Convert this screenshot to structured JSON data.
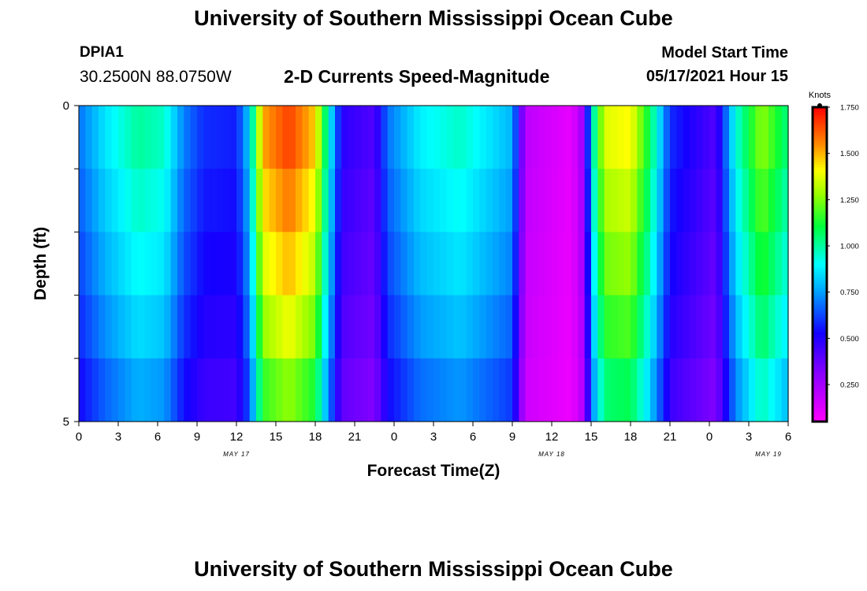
{
  "header": {
    "title": "University of Southern Mississippi Ocean Cube",
    "station": "DPIA1",
    "coordinates": "30.2500N  88.0750W",
    "subtitle": "2-D Currents Speed-Magnitude",
    "model_start_label": "Model Start Time",
    "model_start_value": "05/17/2021 Hour 15"
  },
  "footer": {
    "title": "University of Southern Mississippi Ocean Cube"
  },
  "chart_data": {
    "type": "heatmap",
    "title": "2-D Currents Speed-Magnitude",
    "xlabel": "Forecast Time(Z)",
    "ylabel": "Depth (ft)",
    "x_start_hour_since_may17_00": 0,
    "x_end_hour_since_may17_00": 54,
    "x_tick_step_hours": 3,
    "x_tick_labels": [
      "0",
      "3",
      "6",
      "9",
      "12",
      "15",
      "18",
      "21",
      "0",
      "3",
      "6",
      "9",
      "12",
      "15",
      "18",
      "21",
      "0",
      "3",
      "6"
    ],
    "date_labels": [
      {
        "text": "MAY 17",
        "hour": 12
      },
      {
        "text": "MAY 18",
        "hour": 36
      },
      {
        "text": "MAY 19",
        "hour": 52.5
      }
    ],
    "y_tick_labels": [
      {
        "text": "0",
        "depth": 0
      },
      {
        "text": "5",
        "depth": 5
      }
    ],
    "ylim": [
      5,
      0
    ],
    "colorbar": {
      "label": "Knots",
      "min": 0.05,
      "max": 1.75,
      "ticks": [
        "0.250",
        "0.500",
        "0.750",
        "1.000",
        "1.250",
        "1.500",
        "1.750"
      ],
      "tick_values": [
        0.25,
        0.5,
        0.75,
        1.0,
        1.25,
        1.5,
        1.75
      ]
    },
    "depth_layers_ft": [
      0,
      1,
      2,
      3,
      4,
      5
    ],
    "speed_knots_at_0ft": [
      {
        "hour": 0,
        "speed": 0.7
      },
      {
        "hour": 2,
        "speed": 0.88
      },
      {
        "hour": 4.5,
        "speed": 1.03
      },
      {
        "hour": 6.5,
        "speed": 0.98
      },
      {
        "hour": 8,
        "speed": 0.72
      },
      {
        "hour": 9.5,
        "speed": 0.6
      },
      {
        "hour": 12,
        "speed": 0.58
      },
      {
        "hour": 13,
        "speed": 0.85
      },
      {
        "hour": 14,
        "speed": 1.55
      },
      {
        "hour": 16,
        "speed": 1.7
      },
      {
        "hour": 18,
        "speed": 1.5
      },
      {
        "hour": 19,
        "speed": 0.95
      },
      {
        "hour": 20,
        "speed": 0.5
      },
      {
        "hour": 22.5,
        "speed": 0.42
      },
      {
        "hour": 23.5,
        "speed": 0.7
      },
      {
        "hour": 26,
        "speed": 0.9
      },
      {
        "hour": 29,
        "speed": 0.98
      },
      {
        "hour": 33,
        "speed": 0.8
      },
      {
        "hour": 34,
        "speed": 0.2
      },
      {
        "hour": 37.5,
        "speed": 0.1
      },
      {
        "hour": 38.5,
        "speed": 0.3
      },
      {
        "hour": 39,
        "speed": 0.9
      },
      {
        "hour": 40,
        "speed": 1.4
      },
      {
        "hour": 42,
        "speed": 1.45
      },
      {
        "hour": 43.5,
        "speed": 1.1
      },
      {
        "hour": 45,
        "speed": 0.6
      },
      {
        "hour": 48.5,
        "speed": 0.42
      },
      {
        "hour": 50,
        "speed": 0.95
      },
      {
        "hour": 52,
        "speed": 1.3
      },
      {
        "hour": 54,
        "speed": 1.05
      }
    ],
    "depth_factor": [
      1.0,
      0.95,
      0.9,
      0.85,
      0.78,
      0.7
    ]
  }
}
